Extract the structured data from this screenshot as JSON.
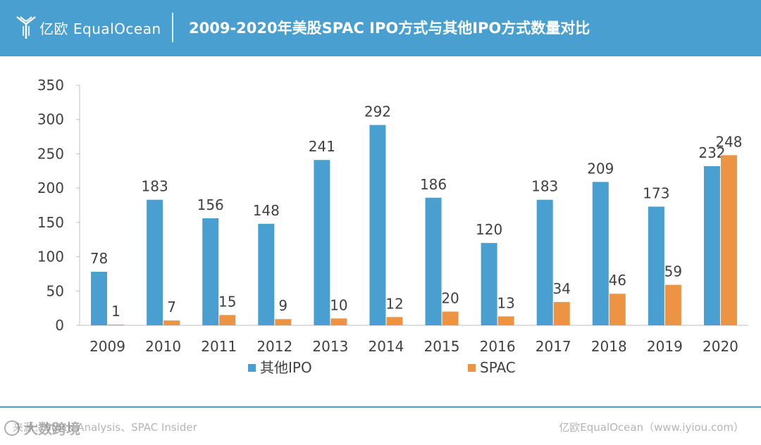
{
  "header": {
    "logo_text": "亿欧 EqualOcean",
    "title": "2009-2020年美股SPAC IPO方式与其他IPO方式数量对比"
  },
  "colors": {
    "header_bg": "#4a9fd1",
    "series_other": "#4a9fd1",
    "series_spac": "#ec9443"
  },
  "chart_data": {
    "type": "bar",
    "title": "2009-2020年美股SPAC IPO方式与其他IPO方式数量对比",
    "categories": [
      "2009",
      "2010",
      "2011",
      "2012",
      "2013",
      "2014",
      "2015",
      "2016",
      "2017",
      "2018",
      "2019",
      "2020"
    ],
    "series": [
      {
        "name": "其他IPO",
        "values": [
          78,
          183,
          156,
          148,
          241,
          292,
          186,
          120,
          183,
          209,
          173,
          232
        ]
      },
      {
        "name": "SPAC",
        "values": [
          1,
          7,
          15,
          9,
          10,
          12,
          20,
          13,
          34,
          46,
          59,
          248
        ]
      }
    ],
    "yticks": [
      0,
      50,
      100,
      150,
      200,
      250,
      300,
      350
    ],
    "ylim": [
      0,
      350
    ],
    "xlabel": "",
    "ylabel": "",
    "legend_position": "bottom",
    "grid": false
  },
  "footer": {
    "source": "来源：Stock Analysis、SPAC Insider",
    "brand": "亿欧EqualOcean（www.iyiou.com）",
    "watermark": "大数跨境"
  }
}
